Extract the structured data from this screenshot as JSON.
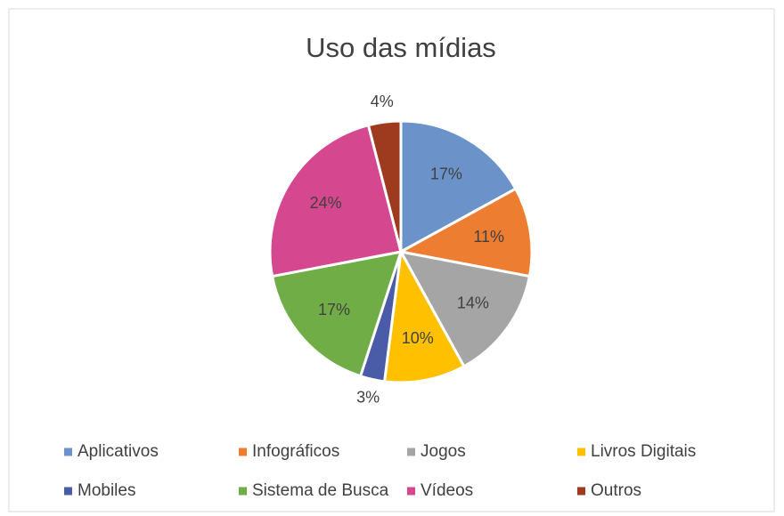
{
  "chart_data": {
    "type": "pie",
    "title": "Uso das mídias",
    "categories": [
      "Aplicativos",
      "Infográficos",
      "Jogos",
      "Livros Digitais",
      "Mobiles",
      "Sistema de Busca",
      "Vídeos",
      "Outros"
    ],
    "values": [
      17,
      11,
      14,
      10,
      3,
      17,
      24,
      4
    ],
    "value_labels": [
      "17%",
      "11%",
      "14%",
      "10%",
      "3%",
      "17%",
      "24%",
      "4%"
    ],
    "colors": [
      "#6b93c9",
      "#ed7d31",
      "#a5a5a5",
      "#ffc000",
      "#4a5ba8",
      "#70ad47",
      "#d5478f",
      "#9e3b1f"
    ],
    "legend": "bottom"
  }
}
